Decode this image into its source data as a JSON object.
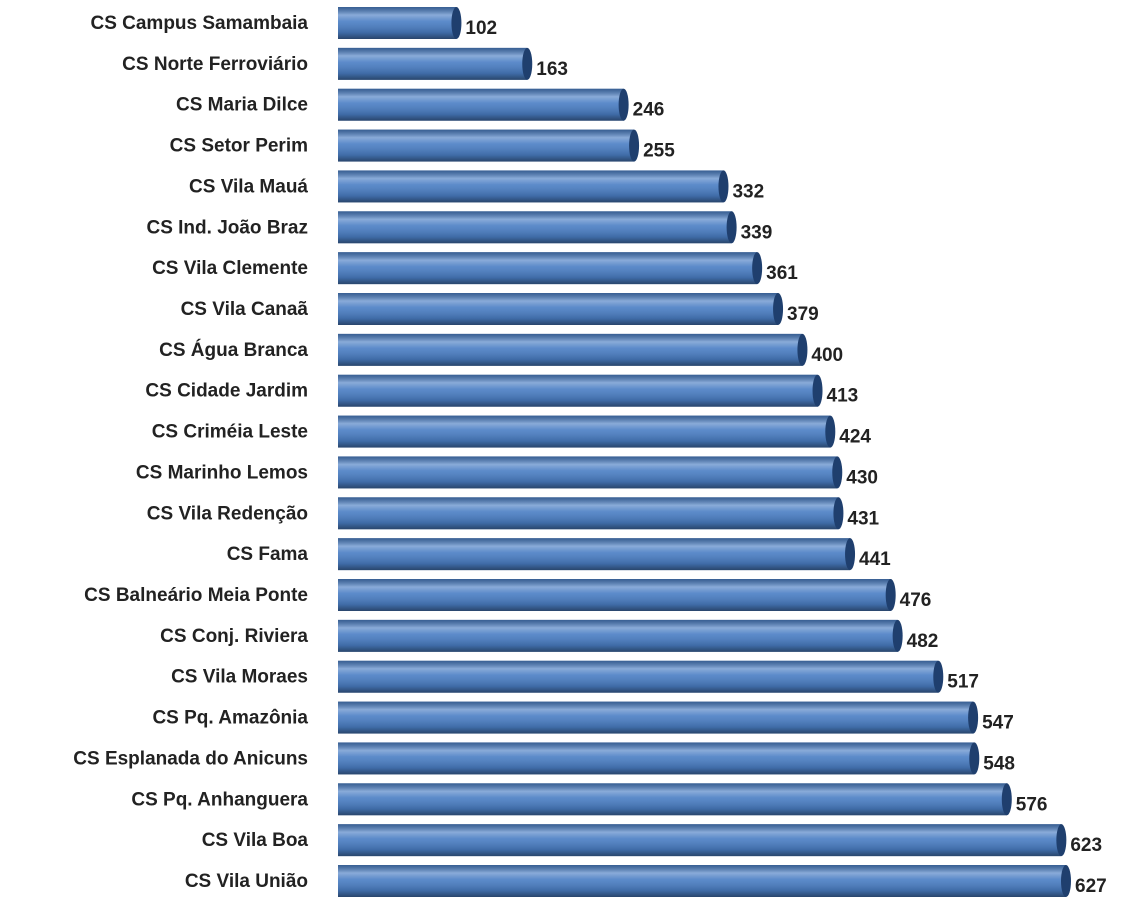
{
  "chart_data": {
    "type": "bar",
    "orientation": "horizontal",
    "color": "#4a7ec4",
    "categories": [
      "CS Campus Samambaia",
      "CS Norte Ferroviário",
      "CS Maria Dilce",
      "CS Setor Perim",
      "CS Vila Mauá",
      "CS Ind. João Braz",
      "CS Vila Clemente",
      "CS Vila Canaã",
      "CS Água Branca",
      "CS Cidade Jardim",
      "CS Criméia Leste",
      "CS Marinho Lemos",
      "CS Vila Redenção",
      "CS Fama",
      "CS Balneário Meia Ponte",
      "CS Conj. Riviera",
      "CS Vila Moraes",
      "CS Pq. Amazônia",
      "CS Esplanada do Anicuns",
      "CS Pq. Anhanguera",
      "CS Vila Boa",
      "CS Vila União"
    ],
    "values": [
      102,
      163,
      246,
      255,
      332,
      339,
      361,
      379,
      400,
      413,
      424,
      430,
      431,
      441,
      476,
      482,
      517,
      547,
      548,
      576,
      623,
      627
    ]
  }
}
